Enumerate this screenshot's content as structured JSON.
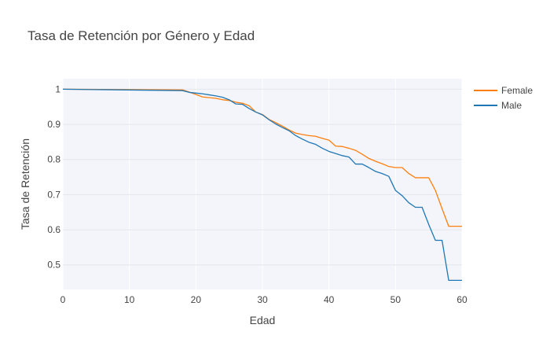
{
  "chart_data": {
    "type": "line",
    "title": "Tasa de Retención por Género y Edad",
    "xlabel": "Edad",
    "ylabel": "Tasa de Retención",
    "xlim": [
      0,
      60
    ],
    "ylim": [
      0.43,
      1.03
    ],
    "xticks": [
      0,
      10,
      20,
      30,
      40,
      50,
      60
    ],
    "yticks": [
      0.5,
      0.6,
      0.7,
      0.8,
      0.9,
      1
    ],
    "ytick_labels": [
      "0.5",
      "0.6",
      "0.7",
      "0.8",
      "0.9",
      "1"
    ],
    "grid": true,
    "legend_position": "top-right",
    "series": [
      {
        "name": "Female",
        "color": "#ff7f0e",
        "points": [
          [
            0,
            1.0
          ],
          [
            18,
            0.998
          ],
          [
            19,
            0.992
          ],
          [
            20,
            0.985
          ],
          [
            21,
            0.978
          ],
          [
            22,
            0.976
          ],
          [
            23,
            0.974
          ],
          [
            24,
            0.97
          ],
          [
            25,
            0.968
          ],
          [
            26,
            0.963
          ],
          [
            27,
            0.96
          ],
          [
            28,
            0.953
          ],
          [
            29,
            0.935
          ],
          [
            30,
            0.928
          ],
          [
            31,
            0.914
          ],
          [
            32,
            0.905
          ],
          [
            33,
            0.895
          ],
          [
            34,
            0.884
          ],
          [
            35,
            0.875
          ],
          [
            36,
            0.871
          ],
          [
            37,
            0.868
          ],
          [
            38,
            0.866
          ],
          [
            39,
            0.86
          ],
          [
            40,
            0.855
          ],
          [
            41,
            0.838
          ],
          [
            42,
            0.837
          ],
          [
            43,
            0.832
          ],
          [
            44,
            0.826
          ],
          [
            45,
            0.815
          ],
          [
            46,
            0.803
          ],
          [
            47,
            0.795
          ],
          [
            48,
            0.788
          ],
          [
            49,
            0.78
          ],
          [
            50,
            0.777
          ],
          [
            51,
            0.777
          ],
          [
            52,
            0.76
          ],
          [
            53,
            0.748
          ],
          [
            54,
            0.748
          ],
          [
            55,
            0.748
          ],
          [
            56,
            0.712
          ],
          [
            57,
            0.66
          ],
          [
            58,
            0.61
          ],
          [
            60,
            0.61
          ]
        ]
      },
      {
        "name": "Male",
        "color": "#1f77b4",
        "points": [
          [
            0,
            1.0
          ],
          [
            18,
            0.996
          ],
          [
            19,
            0.991
          ],
          [
            20,
            0.989
          ],
          [
            21,
            0.987
          ],
          [
            22,
            0.984
          ],
          [
            23,
            0.981
          ],
          [
            24,
            0.977
          ],
          [
            25,
            0.97
          ],
          [
            26,
            0.958
          ],
          [
            27,
            0.957
          ],
          [
            28,
            0.945
          ],
          [
            29,
            0.935
          ],
          [
            30,
            0.927
          ],
          [
            31,
            0.913
          ],
          [
            32,
            0.901
          ],
          [
            33,
            0.891
          ],
          [
            34,
            0.882
          ],
          [
            35,
            0.868
          ],
          [
            36,
            0.858
          ],
          [
            37,
            0.849
          ],
          [
            38,
            0.843
          ],
          [
            39,
            0.832
          ],
          [
            40,
            0.823
          ],
          [
            41,
            0.817
          ],
          [
            42,
            0.811
          ],
          [
            43,
            0.807
          ],
          [
            44,
            0.787
          ],
          [
            45,
            0.787
          ],
          [
            46,
            0.777
          ],
          [
            47,
            0.766
          ],
          [
            48,
            0.76
          ],
          [
            49,
            0.752
          ],
          [
            50,
            0.712
          ],
          [
            51,
            0.697
          ],
          [
            52,
            0.677
          ],
          [
            53,
            0.664
          ],
          [
            54,
            0.664
          ],
          [
            55,
            0.615
          ],
          [
            56,
            0.57
          ],
          [
            57,
            0.57
          ],
          [
            58,
            0.456
          ],
          [
            60,
            0.456
          ]
        ]
      }
    ]
  }
}
